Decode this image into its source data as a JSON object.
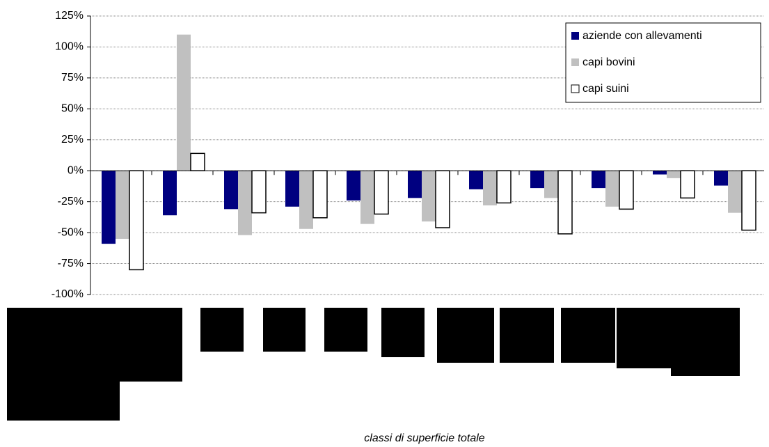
{
  "chart_data": {
    "type": "bar",
    "x_label": "classi di superficie totale",
    "categories": [
      null,
      null,
      null,
      null,
      null,
      null,
      null,
      null,
      null,
      null,
      null
    ],
    "series": [
      {
        "name": "aziende con allevamenti",
        "color": "#000080",
        "values": [
          -59,
          -36,
          -31,
          -29,
          -24,
          -22,
          -15,
          -14,
          -14,
          -3,
          -12
        ]
      },
      {
        "name": "capi bovini",
        "color": "#c0c0c0",
        "values": [
          -55,
          110,
          -52,
          -47,
          -43,
          -41,
          -28,
          -22,
          -29,
          -6,
          -34
        ]
      },
      {
        "name": "capi suini",
        "color": "#ffffff",
        "values": [
          -80,
          14,
          -34,
          -38,
          -35,
          -46,
          -26,
          -51,
          -31,
          -22,
          -48
        ]
      }
    ],
    "ylim": [
      -100,
      125
    ],
    "yticks": [
      {
        "value": -100,
        "label": "-100%"
      },
      {
        "value": -75,
        "label": "-75%"
      },
      {
        "value": -50,
        "label": "-50%"
      },
      {
        "value": -25,
        "label": "-25%"
      },
      {
        "value": 0,
        "label": "0%"
      },
      {
        "value": 25,
        "label": "25%"
      },
      {
        "value": 50,
        "label": "50%"
      },
      {
        "value": 75,
        "label": "75%"
      },
      {
        "value": 100,
        "label": "100%"
      },
      {
        "value": 125,
        "label": "125%"
      }
    ],
    "grid": true,
    "legend": "top-right"
  }
}
